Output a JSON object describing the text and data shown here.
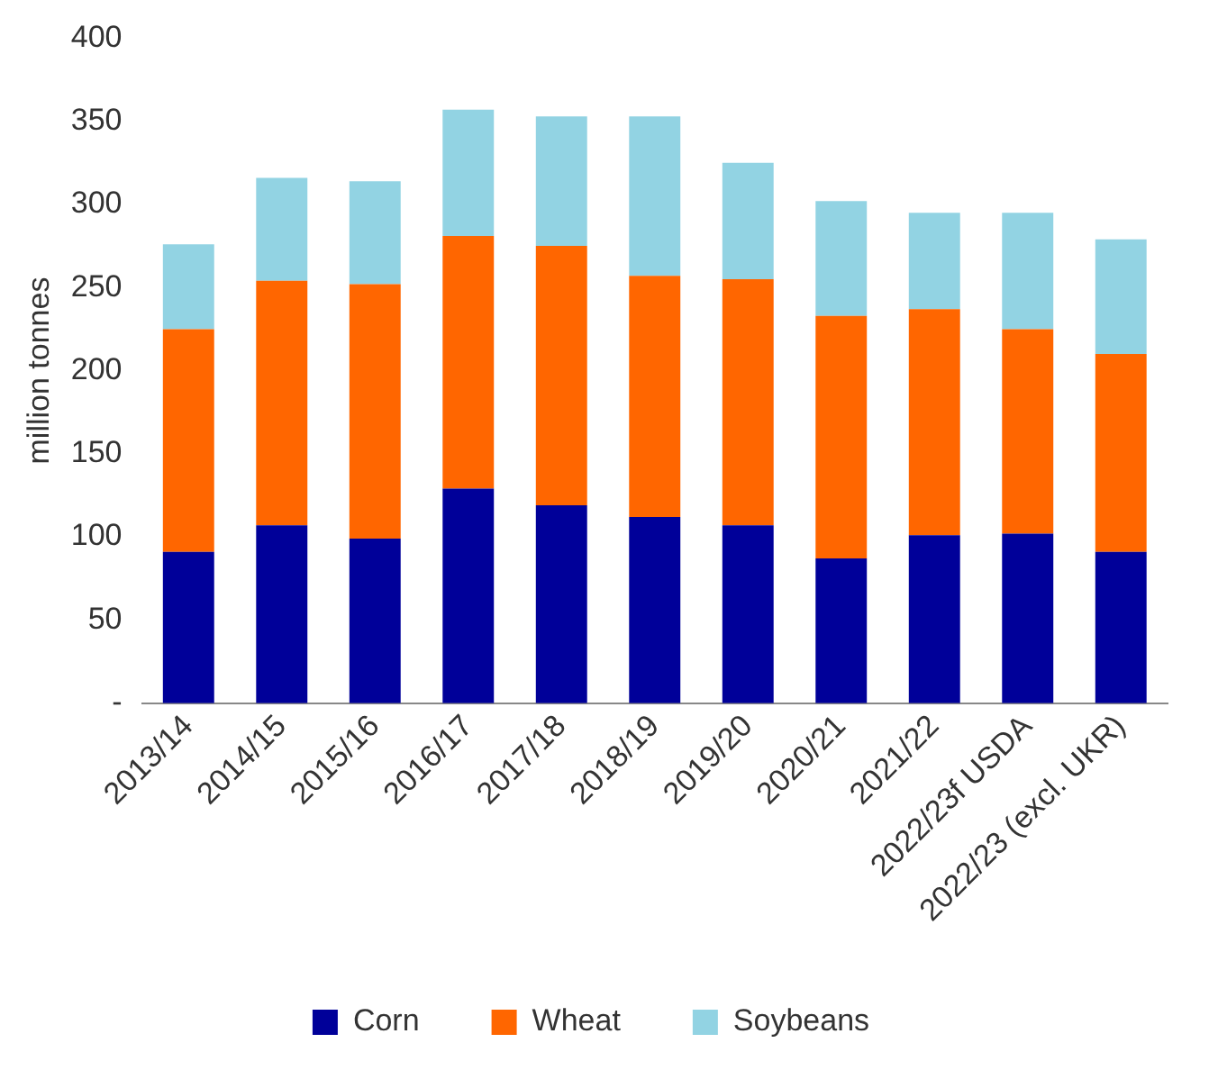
{
  "chart_data": {
    "type": "bar",
    "stacked": true,
    "ylabel": "million tonnes",
    "categories": [
      "2013/14",
      "2014/15",
      "2015/16",
      "2016/17",
      "2017/18",
      "2018/19",
      "2019/20",
      "2020/21",
      "2021/22",
      "2022/23f USDA",
      "2022/23 (excl. UKR)"
    ],
    "series": [
      {
        "name": "Corn",
        "color": "#000099",
        "values": [
          91,
          107,
          99,
          129,
          119,
          112,
          107,
          87,
          101,
          102,
          91
        ]
      },
      {
        "name": "Wheat",
        "color": "#ff6600",
        "values": [
          134,
          147,
          153,
          152,
          156,
          145,
          148,
          146,
          136,
          123,
          119
        ]
      },
      {
        "name": "Soybeans",
        "color": "#92d3e3",
        "values": [
          51,
          62,
          62,
          76,
          78,
          96,
          70,
          69,
          58,
          70,
          69
        ]
      }
    ],
    "ylim": [
      0,
      400
    ],
    "yticks": [
      {
        "value": 0,
        "label": "-"
      },
      50,
      100,
      150,
      200,
      250,
      300,
      350,
      400
    ],
    "grid": false,
    "legend": "bottom"
  }
}
